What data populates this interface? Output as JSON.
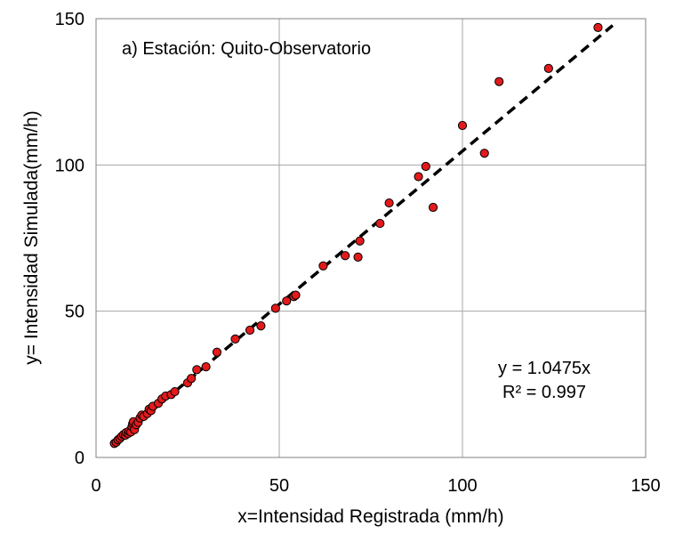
{
  "chart_data": {
    "type": "scatter",
    "title": "a) Estación: Quito-Observatorio",
    "xlabel": "x=Intensidad Registrada (mm/h)",
    "ylabel": "y= Intensidad Simulada(mm/h)",
    "xlim": [
      0,
      150
    ],
    "ylim": [
      0,
      150
    ],
    "xticks": [
      0,
      50,
      100,
      150
    ],
    "yticks": [
      0,
      50,
      100,
      150
    ],
    "grid": true,
    "marker_color": "#e31a1c",
    "marker_edge_color": "#000000",
    "trendline_color": "#000000",
    "trendline": {
      "slope": 1.0475,
      "x_range": [
        5,
        141
      ]
    },
    "equation_text": "y = 1.0475x",
    "r2_text": "R² = 0.997",
    "points": [
      [
        5,
        4.8
      ],
      [
        5.5,
        5.2
      ],
      [
        6,
        6
      ],
      [
        6.5,
        6.5
      ],
      [
        7,
        7.2
      ],
      [
        7.5,
        7.8
      ],
      [
        8,
        7.6
      ],
      [
        8.2,
        8.5
      ],
      [
        8.8,
        8.2
      ],
      [
        9,
        9
      ],
      [
        9.5,
        8.7
      ],
      [
        9.8,
        10.5
      ],
      [
        10,
        11.5
      ],
      [
        10.2,
        12.2
      ],
      [
        10.5,
        9.5
      ],
      [
        11,
        11.2
      ],
      [
        11.5,
        12
      ],
      [
        12,
        13.5
      ],
      [
        12.5,
        14.5
      ],
      [
        13,
        14
      ],
      [
        14,
        15
      ],
      [
        14.5,
        16.5
      ],
      [
        15,
        16
      ],
      [
        15.5,
        17.5
      ],
      [
        17,
        18.5
      ],
      [
        18,
        20
      ],
      [
        19,
        21
      ],
      [
        20.5,
        21.5
      ],
      [
        21.5,
        22.5
      ],
      [
        25,
        25.5
      ],
      [
        26,
        27
      ],
      [
        27.5,
        30
      ],
      [
        30,
        31
      ],
      [
        33,
        36
      ],
      [
        38,
        40.5
      ],
      [
        42,
        43.5
      ],
      [
        45,
        45
      ],
      [
        49,
        51
      ],
      [
        52,
        53.5
      ],
      [
        54,
        55
      ],
      [
        54.5,
        55.5
      ],
      [
        62,
        65.5
      ],
      [
        68,
        69
      ],
      [
        71.5,
        68.5
      ],
      [
        72,
        74
      ],
      [
        77.5,
        80
      ],
      [
        80,
        87
      ],
      [
        88,
        96
      ],
      [
        90,
        99.5
      ],
      [
        92,
        85.5
      ],
      [
        100,
        113.5
      ],
      [
        106,
        104
      ],
      [
        110,
        128.5
      ],
      [
        123.5,
        133
      ],
      [
        137,
        147
      ]
    ]
  }
}
